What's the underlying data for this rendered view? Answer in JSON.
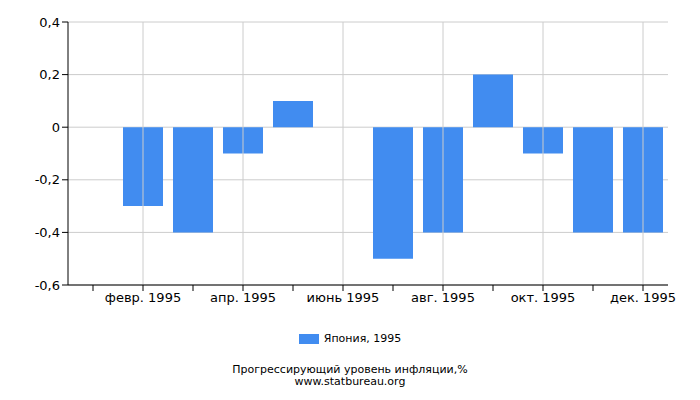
{
  "chart_data": {
    "type": "bar",
    "title": "Прогрессирующий уровень инфляции,%",
    "annotations": [
      "www.statbureau.org"
    ],
    "categories": [
      null,
      "февр. 1995",
      null,
      "апр. 1995",
      null,
      "июнь 1995",
      null,
      "авг. 1995",
      null,
      "окт. 1995",
      null,
      "дек. 1995"
    ],
    "series": [
      {
        "name": "Япония, 1995",
        "color": "#418cf0",
        "values": [
          0,
          -0.3,
          -0.4,
          -0.1,
          0.1,
          0,
          -0.5,
          -0.4,
          0.2,
          -0.1,
          -0.4,
          -0.4
        ]
      }
    ],
    "ylim": [
      -0.6,
      0.4
    ],
    "yticks": [
      {
        "value": -0.6,
        "label": "-0,6"
      },
      {
        "value": -0.4,
        "label": "-0,4"
      },
      {
        "value": -0.2,
        "label": "-0,2"
      },
      0,
      {
        "value": 0.2,
        "label": "0,2"
      },
      {
        "value": 0.4,
        "label": "0,4"
      }
    ],
    "grid": true,
    "legend": "bottom"
  }
}
